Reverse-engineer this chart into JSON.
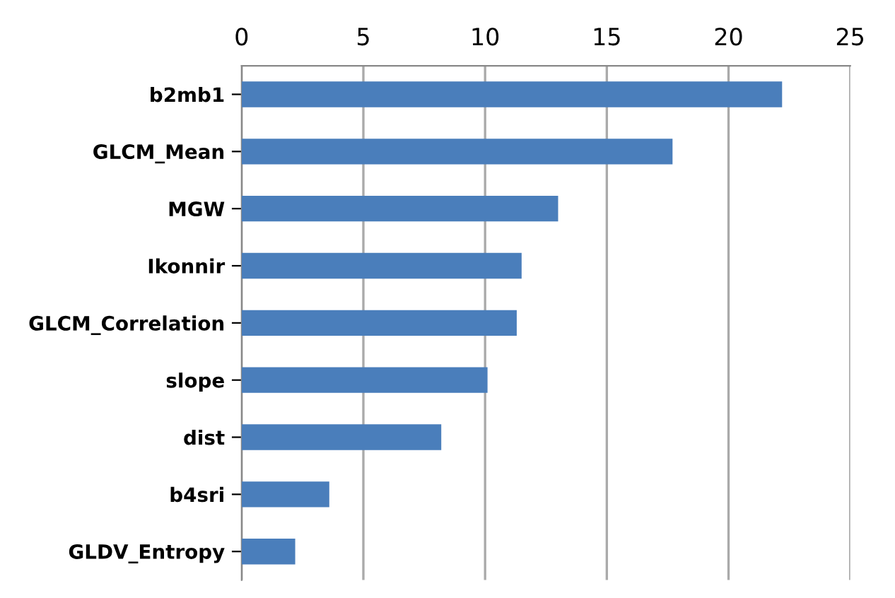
{
  "chart_data": {
    "type": "bar",
    "orientation": "horizontal",
    "categories": [
      "b2mb1",
      "GLCM_Mean",
      "MGW",
      "Ikonnir",
      "GLCM_Correlation",
      "slope",
      "dist",
      "b4sri",
      "GLDV_Entropy"
    ],
    "values": [
      22.2,
      17.7,
      13.0,
      11.5,
      11.3,
      10.1,
      8.2,
      3.6,
      2.2
    ],
    "color": "#4a7ebb",
    "xlim": [
      0,
      25
    ],
    "xticks": [
      0,
      5,
      10,
      15,
      20,
      25
    ],
    "grid": "x"
  }
}
